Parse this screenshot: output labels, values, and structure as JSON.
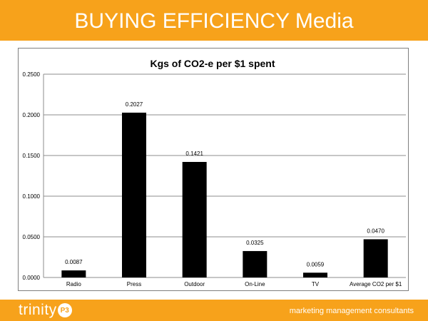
{
  "slide": {
    "title": "BUYING EFFICIENCY Media",
    "footer_logo_text": "trinity",
    "footer_logo_badge": "P3",
    "footer_tagline": "marketing management consultants"
  },
  "colors": {
    "brand_orange": "#F7A21B",
    "bar": "#000000"
  },
  "chart_data": {
    "type": "bar",
    "title": "Kgs of CO2-e per $1 spent",
    "xlabel": "",
    "ylabel": "",
    "categories": [
      "Radio",
      "Press",
      "Outdoor",
      "On-Line",
      "TV",
      "Average CO2 per $1"
    ],
    "values": [
      0.0087,
      0.2027,
      0.1421,
      0.0325,
      0.0059,
      0.047
    ],
    "data_labels": [
      "0.0087",
      "0.2027",
      "0.1421",
      "0.0325",
      "0.0059",
      "0.0470"
    ],
    "ylim": [
      0,
      0.25
    ],
    "yticks": [
      0,
      0.05,
      0.1,
      0.15,
      0.2,
      0.25
    ],
    "ytick_labels": [
      "0.0000",
      "0.0500",
      "0.1000",
      "0.1500",
      "0.2000",
      "0.2500"
    ],
    "grid": true,
    "legend": "none"
  }
}
